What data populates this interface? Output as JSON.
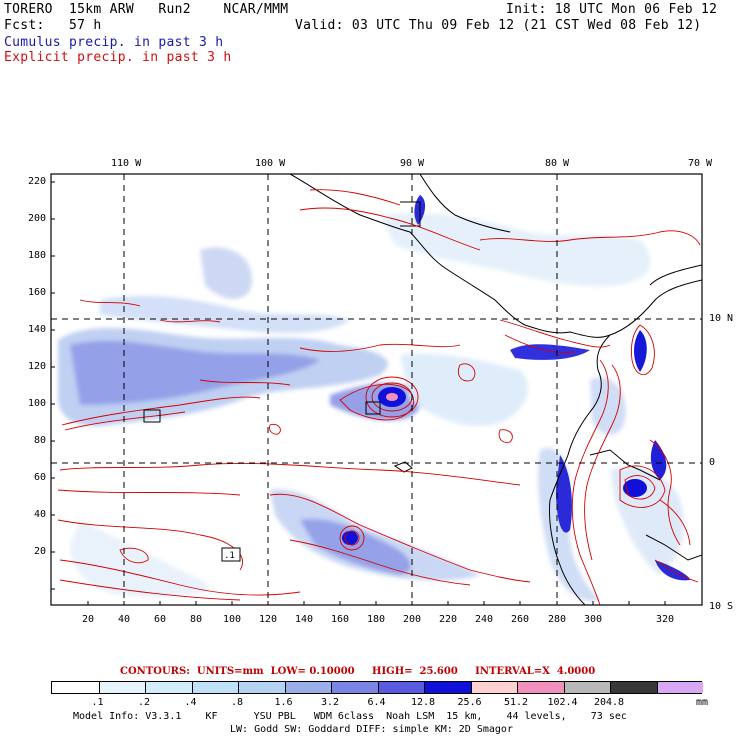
{
  "header": {
    "run_line": "TORERO  15km ARW   Run2    NCAR/MMM",
    "init_line": "Init: 18 UTC Mon 06 Feb 12",
    "fcst_line": "Fcst:   57 h",
    "valid_line": "Valid: 03 UTC Thu 09 Feb 12 (21 CST Wed 08 Feb 12)",
    "cumulus_label": "Cumulus precip. in past 3 h",
    "explicit_label": "Explicit precip. in past 3 h"
  },
  "map": {
    "lon_labels": [
      "110 W",
      "100 W",
      "90 W",
      "80 W",
      "70 W"
    ],
    "lat_labels": [
      "10 N",
      "0",
      "10 S"
    ],
    "y_ticks": [
      "220",
      "200",
      "180",
      "160",
      "140",
      "120",
      "100",
      "80",
      "60",
      "40",
      "20"
    ],
    "x_ticks": [
      "20",
      "40",
      "60",
      "80",
      "100",
      "120",
      "140",
      "160",
      "180",
      "200",
      "220",
      "240",
      "260",
      "280",
      "300",
      "320"
    ],
    "box_labels": [
      ".1"
    ]
  },
  "contours": {
    "line_label": "CONTOURS:  UNITS=mm  LOW= 0.10000     HIGH=  25.600     INTERVAL=X  4.0000"
  },
  "legend": {
    "values": [
      ".1",
      ".2",
      ".4",
      ".8",
      "1.6",
      "3.2",
      "6.4",
      "12.8",
      "25.6",
      "51.2",
      "102.4",
      "204.8"
    ],
    "unit": "mm",
    "colors": [
      "#ffffff",
      "#e8f4fc",
      "#d2ecfa",
      "#c0e2f8",
      "#b4d2f2",
      "#9aaeea",
      "#7a84e4",
      "#5a5ae0",
      "#1010d8",
      "#ffd2d2",
      "#f090bc",
      "#b8b8b8",
      "#383838",
      "#d8a8f4"
    ]
  },
  "footer": {
    "model_info": "Model Info: V3.3.1    KF      YSU PBL   WDM 6class  Noah LSM  15 km,    44 levels,    73 sec",
    "physics_info": "LW: Godd SW: Goddard DIFF: simple KM: 2D Smagor"
  }
}
